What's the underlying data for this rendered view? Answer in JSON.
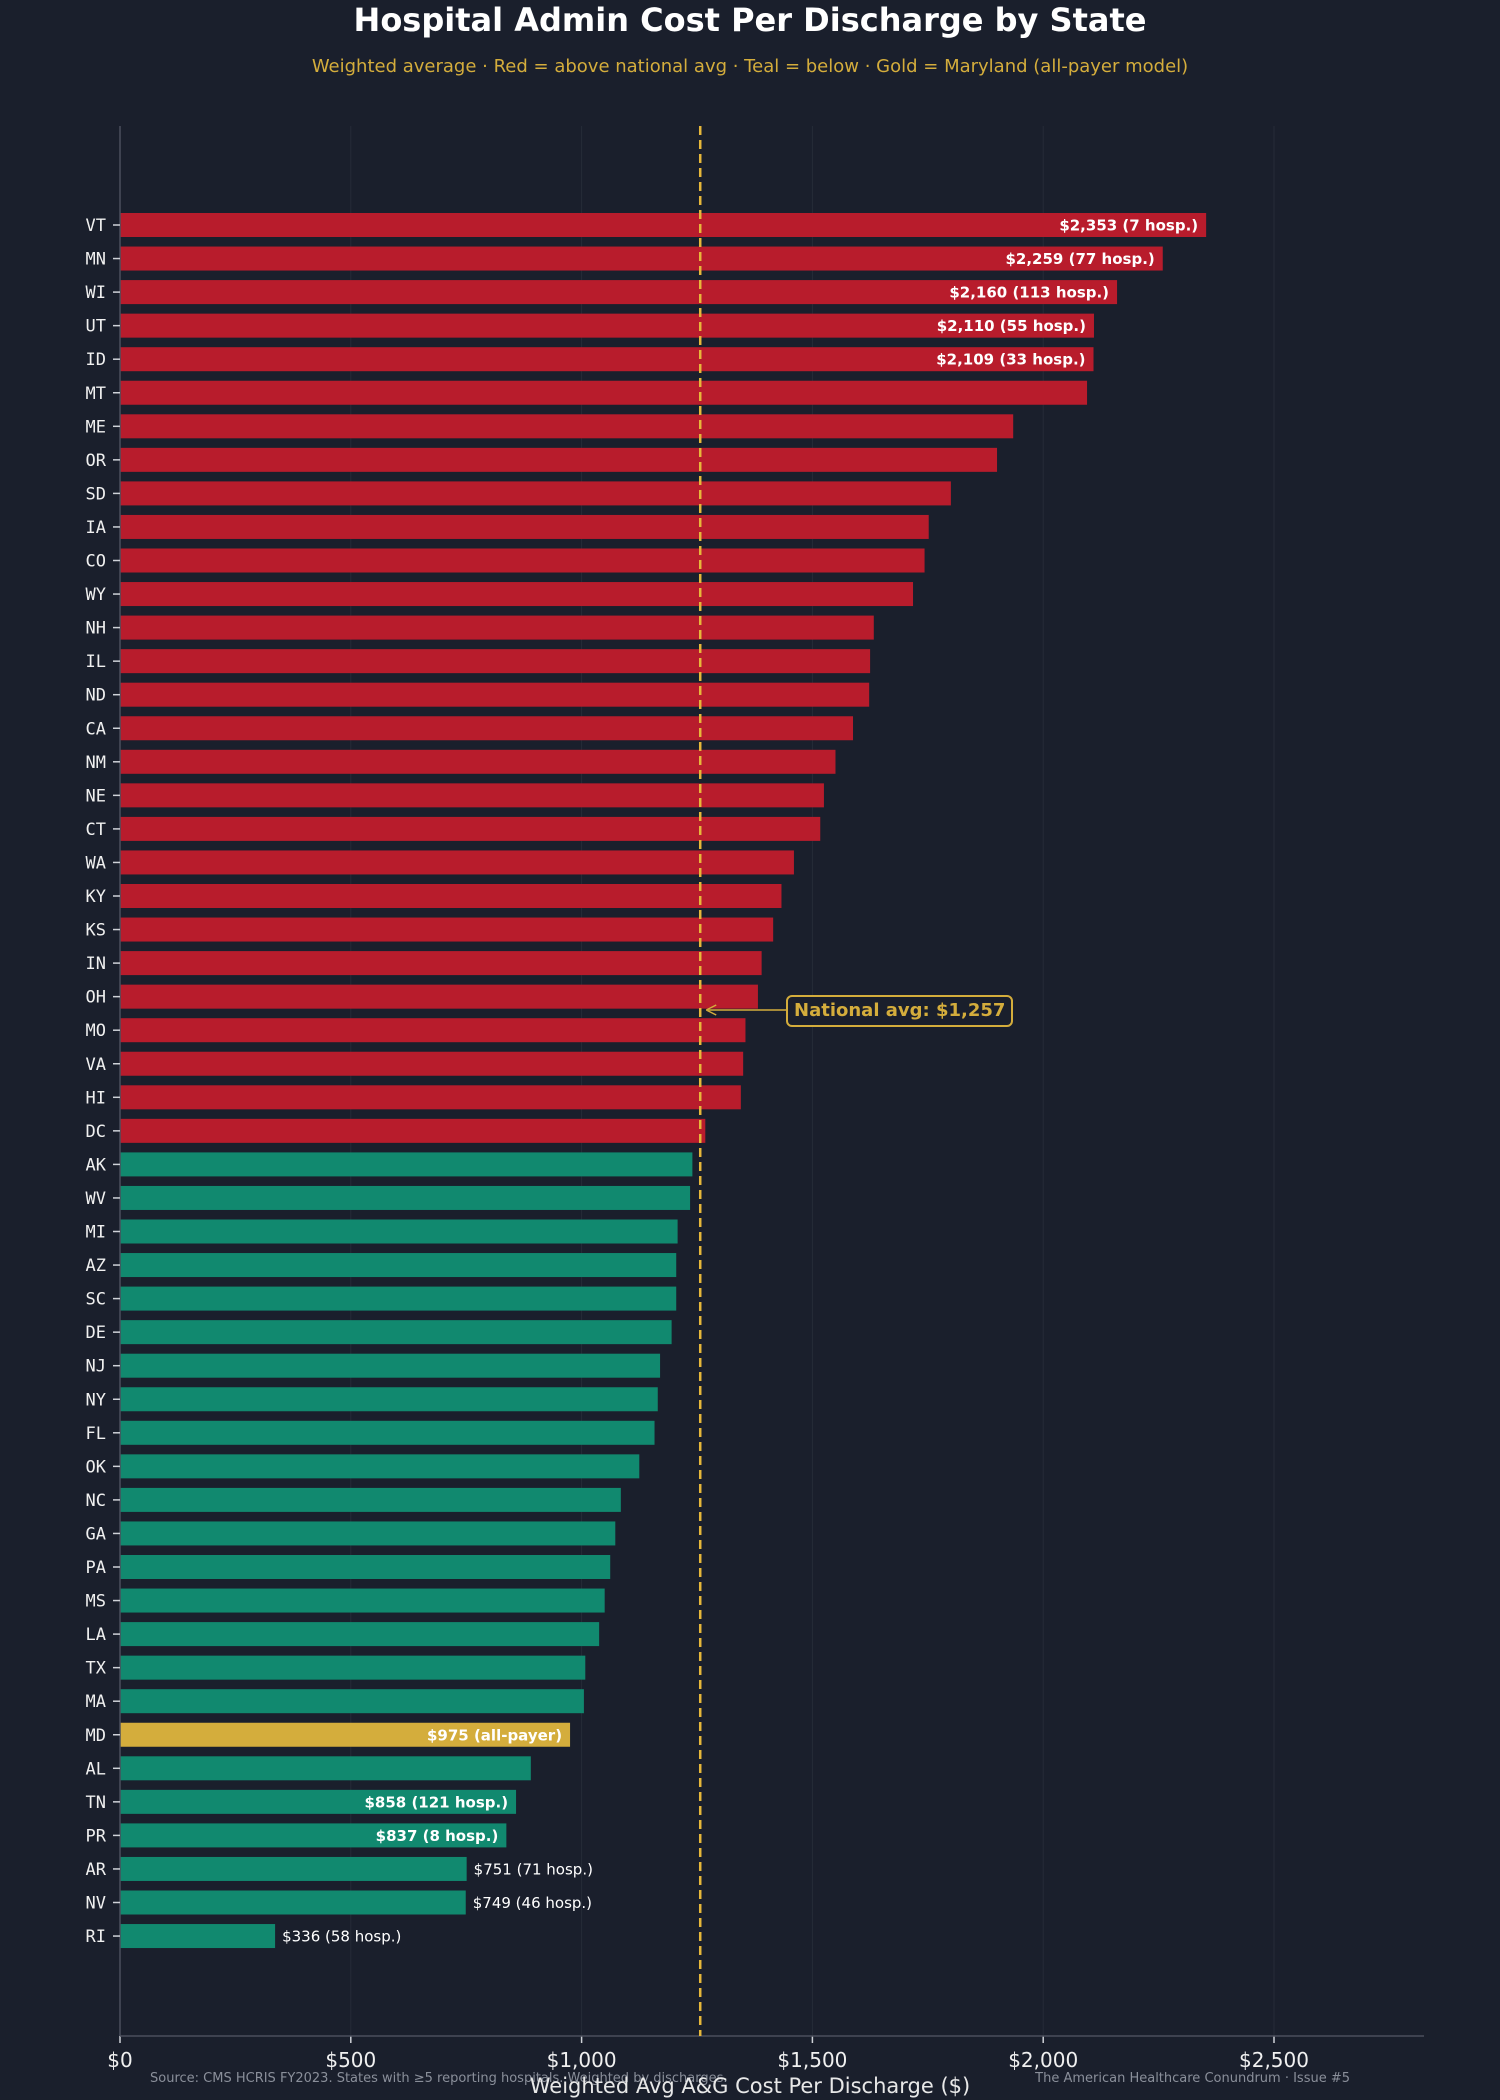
{
  "chart_data": {
    "type": "bar",
    "orientation": "horizontal",
    "title": "Hospital Admin Cost Per Discharge by State",
    "subtitle": "Weighted average · Red = above national avg · Teal = below · Gold = Maryland (all-payer model)",
    "xlabel": "Weighted Avg A&G Cost Per Discharge ($)",
    "xlim": [
      0,
      2820
    ],
    "xticks": [
      {
        "value": 0,
        "label": "$0"
      },
      {
        "value": 500,
        "label": "$500"
      },
      {
        "value": 1000,
        "label": "$1,000"
      },
      {
        "value": 1500,
        "label": "$1,500"
      },
      {
        "value": 2000,
        "label": "$2,000"
      },
      {
        "value": 2500,
        "label": "$2,500"
      }
    ],
    "grid": "vertical, faint",
    "national_avg": 1257,
    "national_avg_label": "National avg: $1,257",
    "colors": {
      "above": "#b81c2c",
      "below": "#11896f",
      "maryland": "#d4ad3c",
      "avg_line": "#e6b73a",
      "background": "#1a1f2c"
    },
    "categories": [
      "VT",
      "MN",
      "WI",
      "UT",
      "ID",
      "MT",
      "ME",
      "OR",
      "SD",
      "IA",
      "CO",
      "WY",
      "NH",
      "IL",
      "ND",
      "CA",
      "NM",
      "NE",
      "CT",
      "WA",
      "KY",
      "KS",
      "IN",
      "OH",
      "MO",
      "VA",
      "HI",
      "DC",
      "AK",
      "WV",
      "MI",
      "AZ",
      "SC",
      "DE",
      "NJ",
      "NY",
      "FL",
      "OK",
      "NC",
      "GA",
      "PA",
      "MS",
      "LA",
      "TX",
      "MA",
      "MD",
      "AL",
      "TN",
      "PR",
      "AR",
      "NV",
      "RI"
    ],
    "values": [
      2353,
      2259,
      2160,
      2110,
      2109,
      2095,
      1935,
      1900,
      1800,
      1752,
      1743,
      1718,
      1633,
      1625,
      1623,
      1588,
      1550,
      1525,
      1517,
      1460,
      1433,
      1415,
      1390,
      1382,
      1355,
      1350,
      1345,
      1268,
      1240,
      1235,
      1208,
      1205,
      1205,
      1195,
      1170,
      1165,
      1158,
      1125,
      1085,
      1073,
      1062,
      1050,
      1038,
      1008,
      1005,
      975,
      890,
      858,
      837,
      751,
      749,
      336
    ],
    "groups": [
      "above",
      "above",
      "above",
      "above",
      "above",
      "above",
      "above",
      "above",
      "above",
      "above",
      "above",
      "above",
      "above",
      "above",
      "above",
      "above",
      "above",
      "above",
      "above",
      "above",
      "above",
      "above",
      "above",
      "above",
      "above",
      "above",
      "above",
      "above",
      "below",
      "below",
      "below",
      "below",
      "below",
      "below",
      "below",
      "below",
      "below",
      "below",
      "below",
      "below",
      "below",
      "below",
      "below",
      "below",
      "below",
      "maryland",
      "below",
      "below",
      "below",
      "below",
      "below",
      "below"
    ],
    "data_labels": [
      {
        "state": "VT",
        "text": "$2,353 (7 hosp.)",
        "position": "inside"
      },
      {
        "state": "MN",
        "text": "$2,259 (77 hosp.)",
        "position": "inside"
      },
      {
        "state": "WI",
        "text": "$2,160 (113 hosp.)",
        "position": "inside"
      },
      {
        "state": "UT",
        "text": "$2,110 (55 hosp.)",
        "position": "inside"
      },
      {
        "state": "ID",
        "text": "$2,109 (33 hosp.)",
        "position": "inside"
      },
      {
        "state": "MD",
        "text": "$975 (all-payer)",
        "position": "inside"
      },
      {
        "state": "TN",
        "text": "$858 (121 hosp.)",
        "position": "inside"
      },
      {
        "state": "PR",
        "text": "$837 (8 hosp.)",
        "position": "inside"
      },
      {
        "state": "AR",
        "text": "$751 (71 hosp.)",
        "position": "outside"
      },
      {
        "state": "NV",
        "text": "$749 (46 hosp.)",
        "position": "outside"
      },
      {
        "state": "RI",
        "text": "$336 (58 hosp.)",
        "position": "outside"
      }
    ]
  },
  "footer": {
    "source": "Source: CMS HCRIS FY2023. States with ≥5 reporting hospitals. Weighted by discharges.",
    "credit": "The American Healthcare Conundrum · Issue #5"
  }
}
